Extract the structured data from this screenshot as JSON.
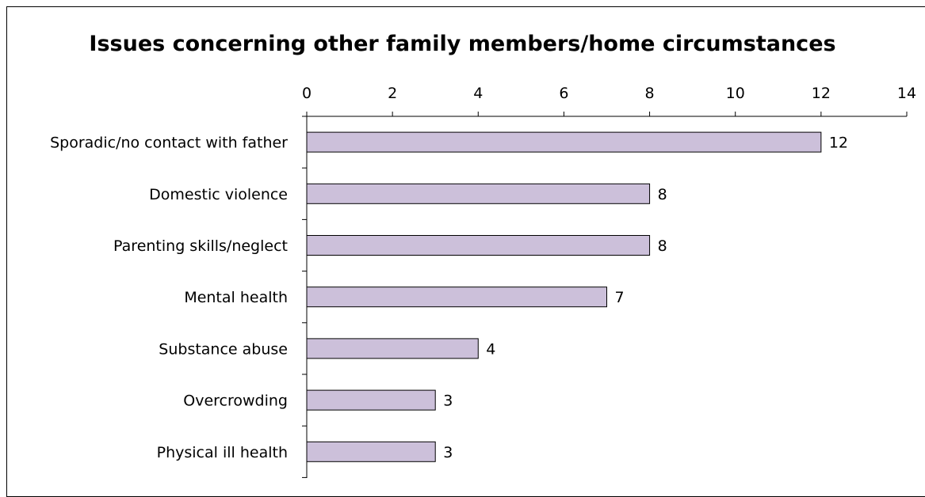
{
  "chart_data": {
    "type": "bar",
    "orientation": "horizontal",
    "title": "Issues concerning other family members/home circumstances",
    "xlabel": "",
    "ylabel": "",
    "categories": [
      "Sporadic/no contact with father",
      "Domestic violence",
      "Parenting skills/neglect",
      "Mental health",
      "Substance abuse",
      "Overcrowding",
      "Physical ill health"
    ],
    "values": [
      12,
      8,
      8,
      7,
      4,
      3,
      3
    ],
    "xlim": [
      0,
      14
    ],
    "xticks": [
      "0",
      "2",
      "4",
      "6",
      "8",
      "10",
      "12",
      "14"
    ],
    "axis_position": "top",
    "grid": false,
    "legend": "none",
    "data_labels": true,
    "bar_color": "#ccc0da",
    "bar_edge_color": "#000000"
  }
}
